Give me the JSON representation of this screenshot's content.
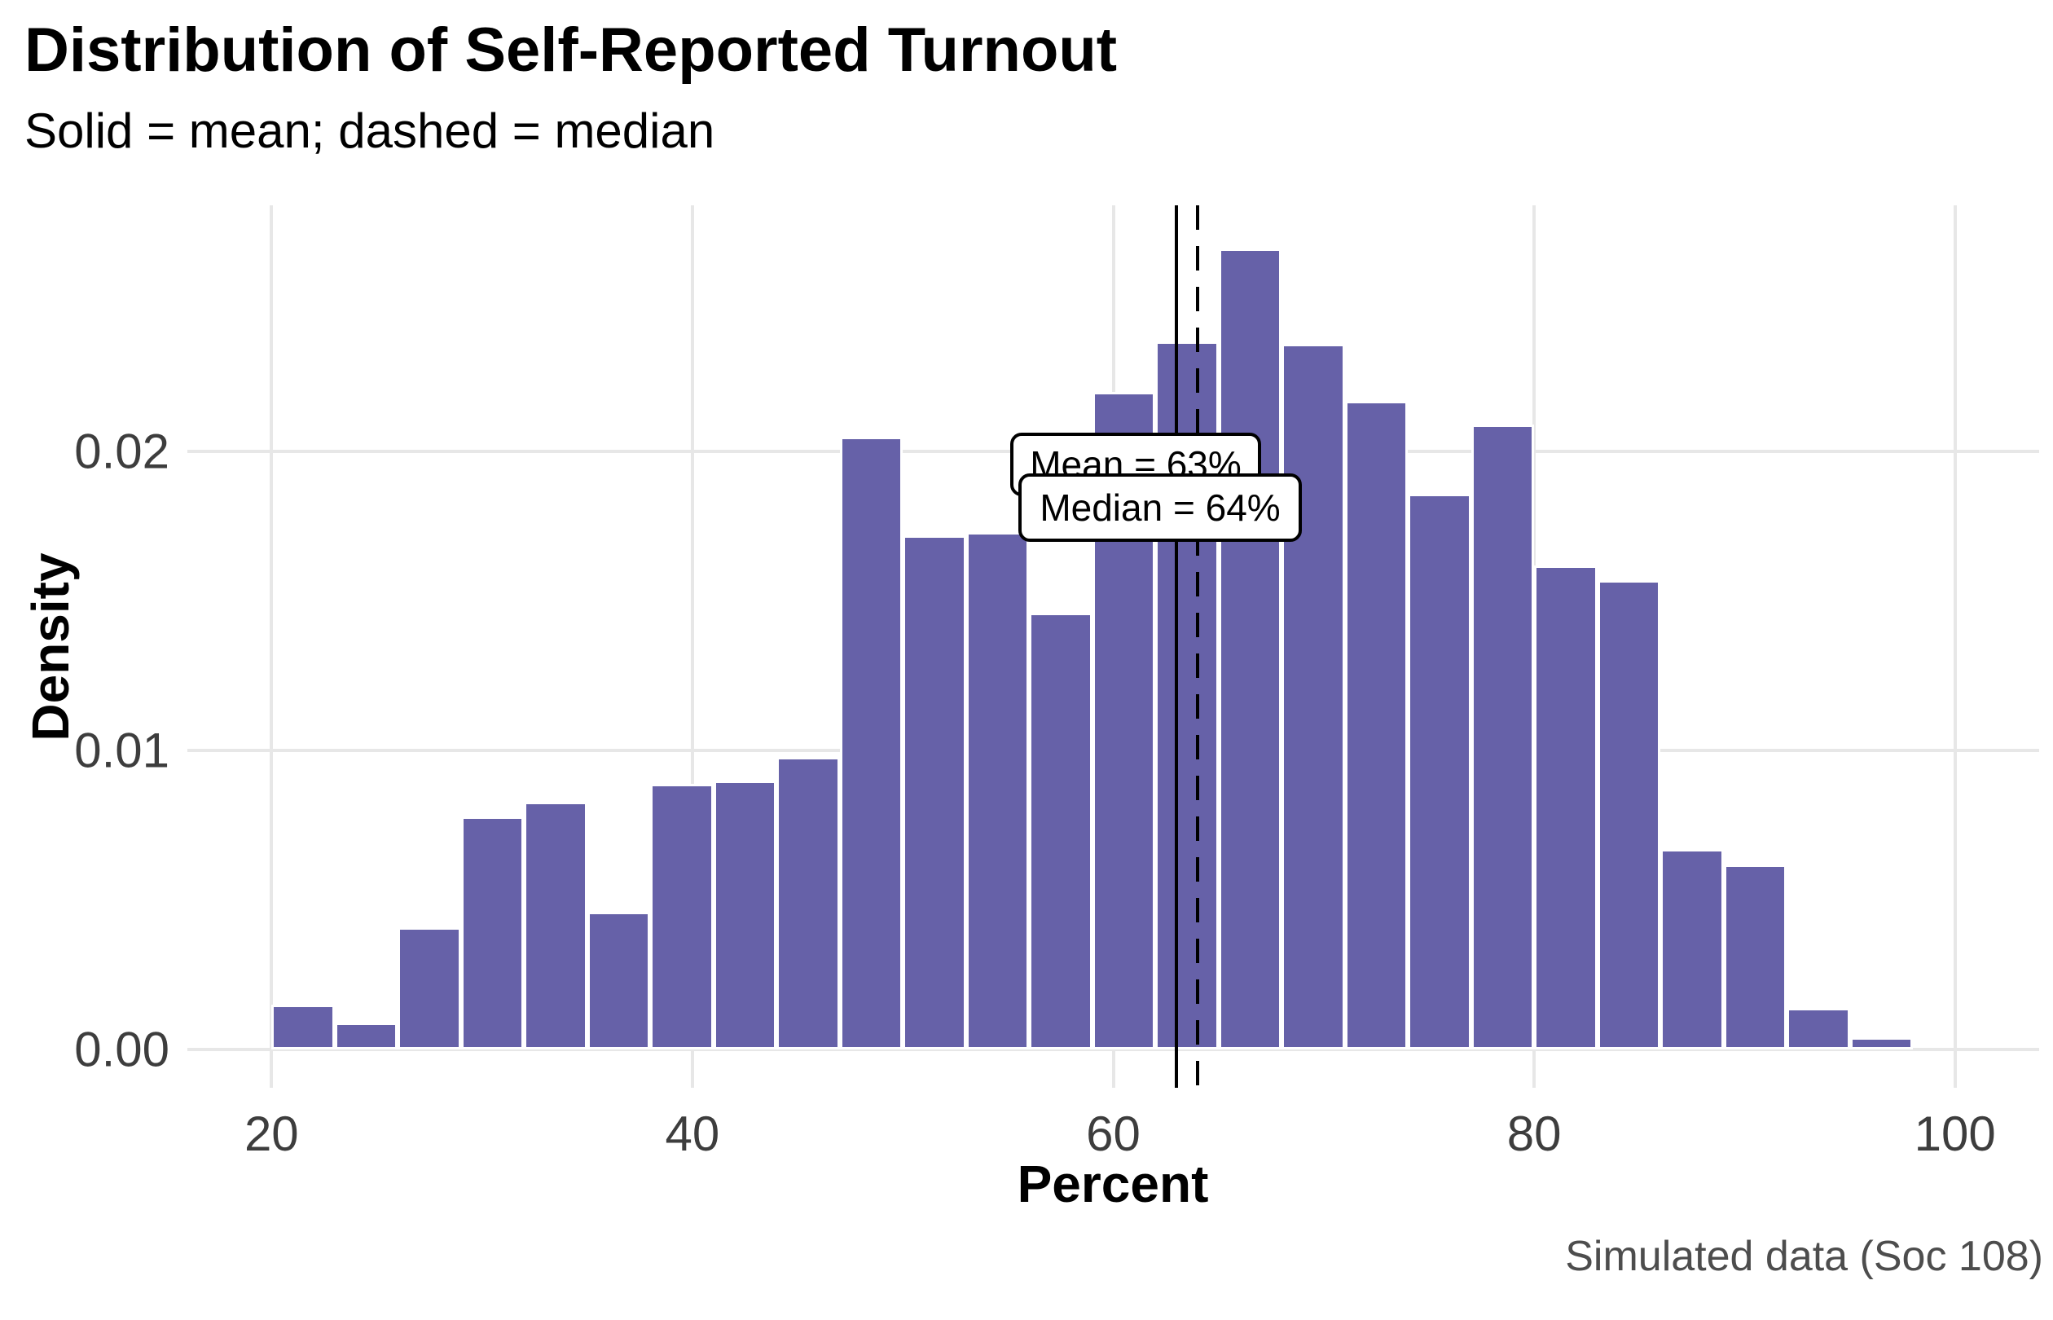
{
  "title": "Distribution of Self-Reported Turnout",
  "subtitle": "Solid = mean; dashed = median",
  "caption": "Simulated data (Soc 108)",
  "axis": {
    "xlabel": "Percent",
    "ylabel": "Density"
  },
  "annotations": {
    "mean_label": "Mean = 63%",
    "median_label": "Median = 64%"
  },
  "chart_data": {
    "type": "bar",
    "subtype": "histogram",
    "title": "Distribution of Self-Reported Turnout",
    "xlabel": "Percent",
    "ylabel": "Density",
    "bin_start": 20,
    "bin_width": 3,
    "densities": [
      0.0015,
      0.0009,
      0.0041,
      0.0078,
      0.0083,
      0.0046,
      0.0089,
      0.009,
      0.0098,
      0.0205,
      0.0172,
      0.0173,
      0.0146,
      0.022,
      0.0237,
      0.0268,
      0.0236,
      0.0217,
      0.0186,
      0.0209,
      0.0162,
      0.0157,
      0.0067,
      0.0062,
      0.0014,
      0.0004
    ],
    "mean_value": 63,
    "median_value": 64,
    "x_ticks": [
      {
        "value": 20,
        "label": "20"
      },
      {
        "value": 40,
        "label": "40"
      },
      {
        "value": 60,
        "label": "60"
      },
      {
        "value": 80,
        "label": "80"
      },
      {
        "value": 100,
        "label": "100"
      }
    ],
    "y_ticks": [
      {
        "value": 0,
        "label": "0.00"
      },
      {
        "value": 0.01,
        "label": "0.01"
      },
      {
        "value": 0.02,
        "label": "0.02"
      }
    ],
    "xlim": [
      16,
      104
    ],
    "ylim": [
      -0.00128,
      0.02824
    ],
    "grid": "major-only",
    "legend_position": "none",
    "colors": {
      "bar_fill": "#6661a8",
      "bar_stroke": "#ffffff",
      "gridline": "#e7e7e7",
      "tick_text": "#3d3d3d",
      "caption_text": "#4d4d4d",
      "refline": "#000000"
    }
  }
}
